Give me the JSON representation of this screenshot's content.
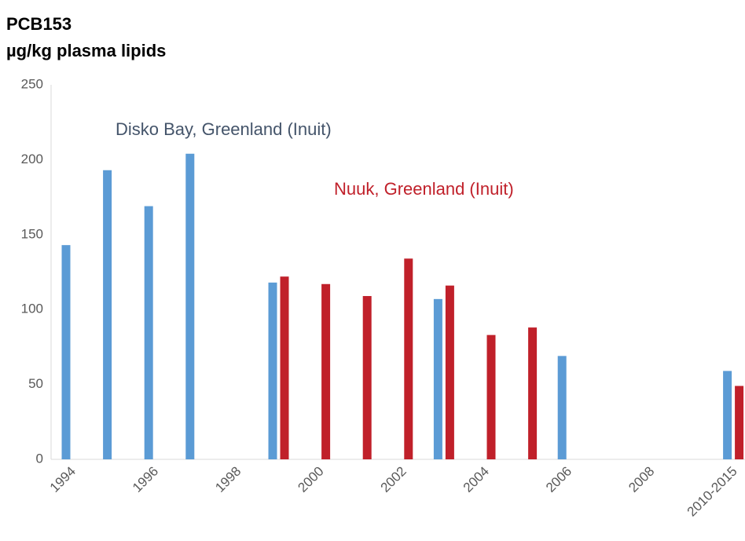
{
  "chart_data": {
    "type": "bar",
    "title": "PCB153",
    "subtitle": "µg/kg plasma lipids",
    "categories": [
      "1994",
      null,
      "1996",
      null,
      "1998",
      null,
      "2000",
      null,
      "2002",
      null,
      "2004",
      null,
      "2006",
      null,
      "2008",
      null,
      "2010-2015"
    ],
    "series": [
      {
        "name": "Disko Bay, Greenland (Inuit)",
        "color": "#5b9bd5",
        "values": [
          143,
          193,
          169,
          204,
          null,
          118,
          null,
          null,
          null,
          107,
          null,
          null,
          69,
          null,
          null,
          null,
          59
        ]
      },
      {
        "name": "Nuuk, Greenland (Inuit)",
        "color": "#c0202a",
        "values": [
          null,
          null,
          null,
          null,
          null,
          122,
          117,
          109,
          134,
          116,
          83,
          88,
          null,
          null,
          null,
          null,
          49
        ]
      }
    ],
    "ylim": [
      0,
      250
    ],
    "yticks": [
      0,
      50,
      100,
      150,
      200,
      250
    ],
    "grid": false
  }
}
